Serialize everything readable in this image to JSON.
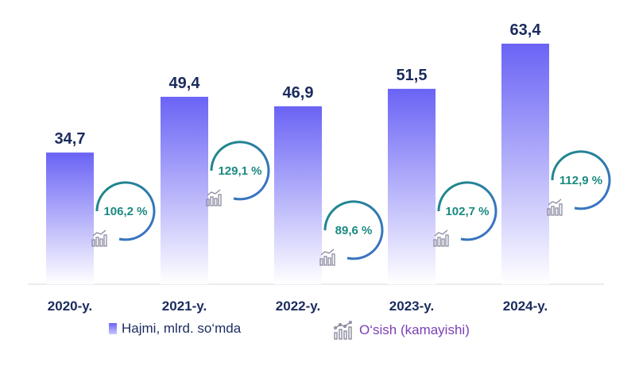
{
  "chart_data": {
    "type": "bar",
    "categories": [
      "2020-y.",
      "2021-y.",
      "2022-y.",
      "2023-y.",
      "2024-y."
    ],
    "series": [
      {
        "name": "Hajmi, mlrd. so‘mda",
        "values": [
          34.7,
          49.4,
          46.9,
          51.5,
          63.4
        ]
      }
    ],
    "value_labels": [
      "34,7",
      "49,4",
      "46,9",
      "51,5",
      "63,4"
    ],
    "growth": {
      "name": "O‘sish (kamayishi)",
      "labels": [
        "106,2 %",
        "129,1 %",
        "89,6 %",
        "102,7 %",
        "112,9 %"
      ]
    },
    "ylim": [
      0,
      63.4
    ],
    "grid": false,
    "legend_position": "bottom",
    "colors": {
      "bar_top": "#6a63f5",
      "bar_bottom": "#ffffff",
      "ring": "#1a8a80",
      "ring_end": "#3f6fd1",
      "value_text": "#1b2b5e",
      "growth_text": "#1a8a80",
      "legend_growth_text": "#7a3fb5"
    }
  },
  "legend": {
    "series_label": "Hajmi, mlrd. so‘mda",
    "growth_label": "O‘sish (kamayishi)",
    "growth_icon": "growth-chart-icon"
  }
}
